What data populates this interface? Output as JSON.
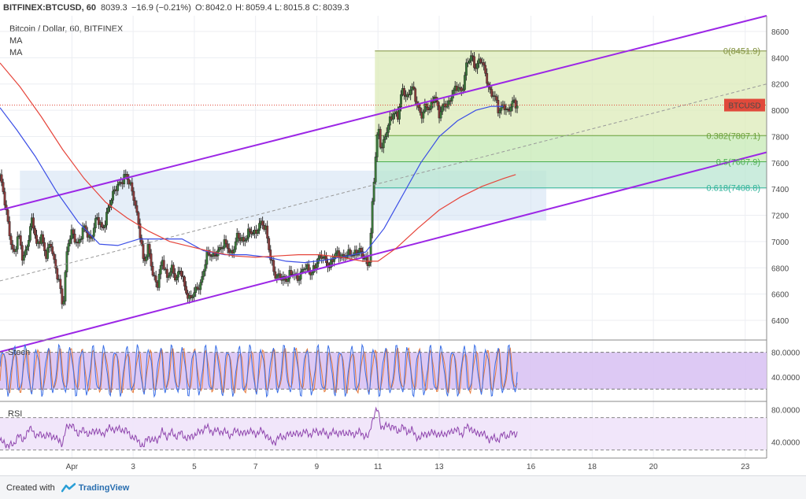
{
  "header": {
    "symbol": "BITFINEX:BTCUSD, 60",
    "last": "8039.3",
    "change": "−16.9 (−0.21%)",
    "o_label": "O:",
    "o": "8042.0",
    "h_label": "H:",
    "h": "8059.4",
    "l_label": "L:",
    "l": "8015.8",
    "c_label": "C:",
    "c": "8039.3",
    "title": "Bitcoin / Dollar, 60, BITFINEX",
    "ma1": "MA",
    "ma2": "MA"
  },
  "footer": {
    "created_with": "Created with",
    "brand": "TradingView"
  },
  "colors": {
    "up": "#3a7a3a",
    "down": "#8a3a3a",
    "channel": "#9c27e6",
    "ma_blue": "#3b4ee6",
    "ma_red": "#e6453b",
    "stoch_k": "#3b6fe6",
    "stoch_d": "#e67a3b",
    "rsi": "#8e44ad"
  },
  "chart_data": [
    {
      "type": "candlestick",
      "title": "Bitcoin / Dollar, 60, BITFINEX",
      "y_ticks": [
        6400,
        6600,
        6800,
        7000,
        7200,
        7400,
        7600,
        7800,
        8000,
        8200,
        8400,
        8600
      ],
      "ylim": [
        6250,
        8720
      ],
      "x_ticks": [
        {
          "label": "Apr",
          "x": 1
        },
        {
          "label": "3",
          "x": 3
        },
        {
          "label": "5",
          "x": 5
        },
        {
          "label": "7",
          "x": 7
        },
        {
          "label": "9",
          "x": 9
        },
        {
          "label": "11",
          "x": 11
        },
        {
          "label": "13",
          "x": 13
        },
        {
          "label": "16",
          "x": 16
        },
        {
          "label": "18",
          "x": 18
        },
        {
          "label": "20",
          "x": 20
        },
        {
          "label": "23",
          "x": 23
        }
      ],
      "xlim": [
        -1.35,
        23.7
      ],
      "price_label": "BTCUSD",
      "price_value": 8039.3,
      "price_series": [
        [
          -1.35,
          7500
        ],
        [
          -1.2,
          7300
        ],
        [
          -1.05,
          7080
        ],
        [
          -0.9,
          6900
        ],
        [
          -0.75,
          7050
        ],
        [
          -0.6,
          6850
        ],
        [
          -0.45,
          7000
        ],
        [
          -0.3,
          7180
        ],
        [
          -0.15,
          6950
        ],
        [
          0.0,
          7050
        ],
        [
          0.15,
          6900
        ],
        [
          0.3,
          6980
        ],
        [
          0.45,
          6800
        ],
        [
          0.6,
          6700
        ],
        [
          0.7,
          6480
        ],
        [
          0.85,
          6950
        ],
        [
          1.0,
          7080
        ],
        [
          1.2,
          6980
        ],
        [
          1.4,
          7100
        ],
        [
          1.6,
          7020
        ],
        [
          1.8,
          7180
        ],
        [
          2.0,
          7080
        ],
        [
          2.2,
          7280
        ],
        [
          2.4,
          7380
        ],
        [
          2.6,
          7460
        ],
        [
          2.75,
          7520
        ],
        [
          2.9,
          7420
        ],
        [
          3.05,
          7300
        ],
        [
          3.2,
          7120
        ],
        [
          3.35,
          6820
        ],
        [
          3.5,
          6950
        ],
        [
          3.65,
          6750
        ],
        [
          3.8,
          6680
        ],
        [
          3.95,
          6850
        ],
        [
          4.1,
          6720
        ],
        [
          4.25,
          6820
        ],
        [
          4.4,
          6700
        ],
        [
          4.55,
          6780
        ],
        [
          4.7,
          6650
        ],
        [
          4.85,
          6560
        ],
        [
          5.0,
          6600
        ],
        [
          5.2,
          6680
        ],
        [
          5.4,
          6900
        ],
        [
          5.6,
          6880
        ],
        [
          5.8,
          6950
        ],
        [
          6.0,
          6980
        ],
        [
          6.2,
          6900
        ],
        [
          6.4,
          7050
        ],
        [
          6.6,
          6980
        ],
        [
          6.8,
          7100
        ],
        [
          7.0,
          7050
        ],
        [
          7.2,
          7150
        ],
        [
          7.35,
          7100
        ],
        [
          7.5,
          6850
        ],
        [
          7.65,
          6720
        ],
        [
          7.8,
          6750
        ],
        [
          8.0,
          6700
        ],
        [
          8.2,
          6760
        ],
        [
          8.4,
          6730
        ],
        [
          8.6,
          6800
        ],
        [
          8.8,
          6760
        ],
        [
          9.0,
          6850
        ],
        [
          9.2,
          6880
        ],
        [
          9.4,
          6820
        ],
        [
          9.6,
          6900
        ],
        [
          9.8,
          6880
        ],
        [
          10.0,
          6920
        ],
        [
          10.2,
          6880
        ],
        [
          10.4,
          6950
        ],
        [
          10.6,
          6860
        ],
        [
          10.7,
          6780
        ],
        [
          10.8,
          7200
        ],
        [
          10.9,
          7600
        ],
        [
          11.0,
          7900
        ],
        [
          11.1,
          7700
        ],
        [
          11.2,
          7750
        ],
        [
          11.35,
          7900
        ],
        [
          11.5,
          8000
        ],
        [
          11.65,
          7950
        ],
        [
          11.8,
          8150
        ],
        [
          11.95,
          8100
        ],
        [
          12.1,
          8200
        ],
        [
          12.25,
          8050
        ],
        [
          12.4,
          7950
        ],
        [
          12.55,
          8050
        ],
        [
          12.7,
          8000
        ],
        [
          12.85,
          8100
        ],
        [
          13.0,
          7980
        ],
        [
          13.15,
          8050
        ],
        [
          13.3,
          8020
        ],
        [
          13.45,
          8150
        ],
        [
          13.6,
          8200
        ],
        [
          13.75,
          8120
        ],
        [
          13.9,
          8350
        ],
        [
          14.05,
          8430
        ],
        [
          14.2,
          8320
        ],
        [
          14.35,
          8380
        ],
        [
          14.5,
          8300
        ],
        [
          14.65,
          8150
        ],
        [
          14.8,
          8100
        ],
        [
          14.95,
          7980
        ],
        [
          15.1,
          8060
        ],
        [
          15.25,
          7980
        ],
        [
          15.4,
          8050
        ],
        [
          15.55,
          8040
        ]
      ],
      "ma_blue": [
        [
          -1.35,
          8020
        ],
        [
          -0.8,
          7850
        ],
        [
          -0.2,
          7650
        ],
        [
          0.5,
          7380
        ],
        [
          1.2,
          7150
        ],
        [
          1.9,
          6980
        ],
        [
          2.5,
          6970
        ],
        [
          3.2,
          7020
        ],
        [
          3.9,
          7020
        ],
        [
          4.6,
          7020
        ],
        [
          5.3,
          6930
        ],
        [
          6.0,
          6900
        ],
        [
          6.7,
          6900
        ],
        [
          7.4,
          6880
        ],
        [
          8.0,
          6850
        ],
        [
          8.6,
          6840
        ],
        [
          9.3,
          6860
        ],
        [
          10.0,
          6890
        ],
        [
          10.6,
          6920
        ],
        [
          11.2,
          7100
        ],
        [
          11.8,
          7350
        ],
        [
          12.4,
          7600
        ],
        [
          13.0,
          7800
        ],
        [
          13.6,
          7920
        ],
        [
          14.2,
          8000
        ],
        [
          14.7,
          8030
        ],
        [
          15.1,
          8030
        ]
      ],
      "ma_red": [
        [
          -1.35,
          8360
        ],
        [
          -0.7,
          8180
        ],
        [
          0.0,
          7950
        ],
        [
          0.7,
          7700
        ],
        [
          1.4,
          7480
        ],
        [
          2.1,
          7300
        ],
        [
          2.8,
          7180
        ],
        [
          3.5,
          7080
        ],
        [
          4.2,
          7000
        ],
        [
          4.9,
          6960
        ],
        [
          5.6,
          6920
        ],
        [
          6.3,
          6890
        ],
        [
          7.0,
          6880
        ],
        [
          7.7,
          6890
        ],
        [
          8.4,
          6900
        ],
        [
          9.1,
          6900
        ],
        [
          9.8,
          6880
        ],
        [
          10.5,
          6850
        ],
        [
          11.0,
          6850
        ],
        [
          11.6,
          6950
        ],
        [
          12.3,
          7100
        ],
        [
          13.0,
          7240
        ],
        [
          13.7,
          7340
        ],
        [
          14.4,
          7420
        ],
        [
          15.1,
          7480
        ],
        [
          15.5,
          7510
        ]
      ],
      "channel_upper": [
        [
          -1.35,
          7240
        ],
        [
          23.7,
          8720
        ]
      ],
      "channel_lower": [
        [
          -1.35,
          6160
        ],
        [
          23.7,
          7680
        ]
      ],
      "midline": [
        [
          -1.35,
          6700
        ],
        [
          23.7,
          8200
        ]
      ],
      "fib_box": {
        "x0": 10.9,
        "x1": 23.7,
        "top": 8451.9,
        "bottom": 7408.8
      },
      "fib_levels": [
        {
          "label": "0(8451.9)",
          "value": 8451.9
        },
        {
          "label": "0.382(7807.1)",
          "value": 7807.1
        },
        {
          "label": "0.5(7607.9)",
          "value": 7607.9
        },
        {
          "label": "0.618(7408.8)",
          "value": 7408.8
        }
      ],
      "support_zone": {
        "x0": -0.7,
        "x1": 16.5,
        "top": 7540,
        "bottom": 7160
      }
    },
    {
      "type": "line",
      "title": "Stoch",
      "y_ticks": [
        40.0,
        80.0
      ],
      "tick_labels": [
        "40.0000",
        "80.0000"
      ],
      "ylim": [
        0,
        100
      ],
      "band": [
        20,
        80
      ],
      "cycles": 46
    },
    {
      "type": "line",
      "title": "RSI",
      "y_ticks": [
        40.0,
        80.0
      ],
      "tick_labels": [
        "40.0000",
        "80.0000"
      ],
      "ylim": [
        20,
        90
      ],
      "band": [
        30,
        70
      ]
    }
  ]
}
